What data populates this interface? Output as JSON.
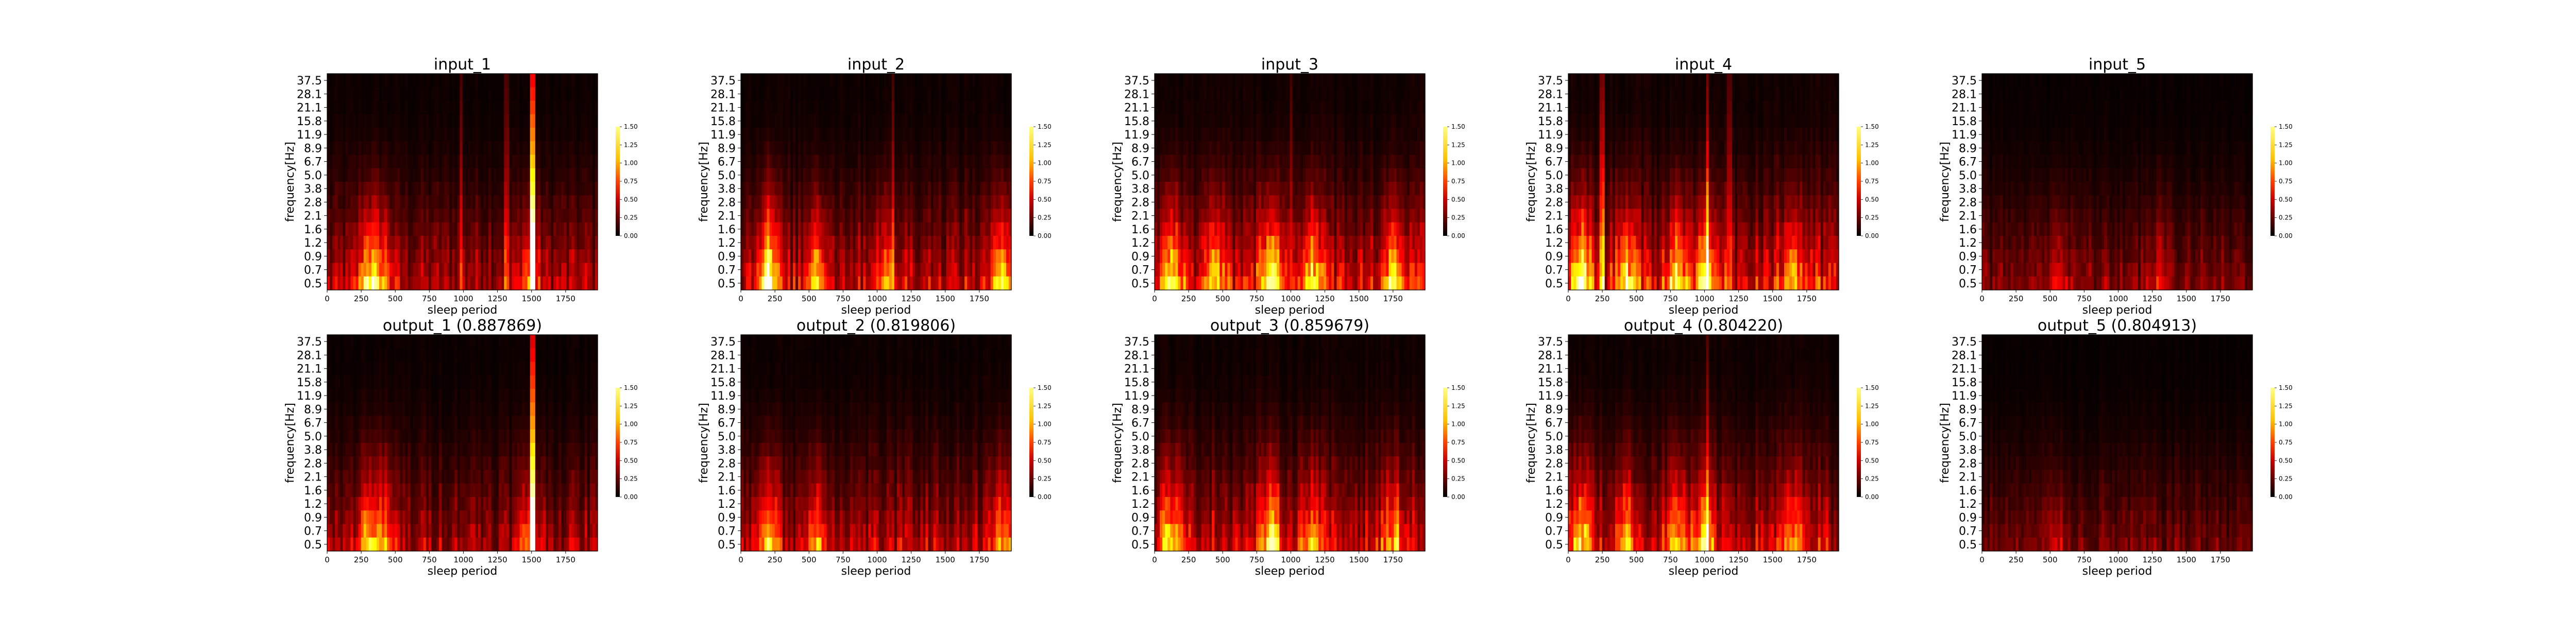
{
  "chart_data": [
    {
      "type": "heatmap",
      "title": "input_1",
      "xlabel": "sleep period",
      "ylabel": "frequency[Hz]",
      "x_ticks": [
        "0",
        "250",
        "500",
        "750",
        "1000",
        "1250",
        "1500",
        "1750"
      ],
      "y_ticks": [
        "37.5",
        "28.1",
        "21.1",
        "15.8",
        "11.9",
        "8.9",
        "6.7",
        "5.0",
        "3.8",
        "2.8",
        "2.1",
        "1.6",
        "1.2",
        "0.9",
        "0.7",
        "0.5"
      ],
      "xlim": [
        0,
        1985
      ],
      "colorbar": {
        "ticks": [
          "1.50",
          "1.25",
          "1.00",
          "0.75",
          "0.50",
          "0.25",
          "0.00"
        ],
        "range": [
          0,
          1.5
        ],
        "colormap": "hot"
      },
      "intensity": {
        "base": 0.36,
        "low_band": [
          [
            300,
            0.8
          ],
          [
            400,
            0.55
          ],
          [
            1480,
            0.45
          ]
        ],
        "streaks": [
          [
            1510,
            1.45
          ],
          [
            980,
            0.4
          ],
          [
            1320,
            0.35
          ]
        ]
      }
    },
    {
      "type": "heatmap",
      "title": "input_2",
      "xlabel": "sleep period",
      "ylabel": "frequency[Hz]",
      "x_ticks": [
        "0",
        "250",
        "500",
        "750",
        "1000",
        "1250",
        "1500",
        "1750"
      ],
      "y_ticks": [
        "37.5",
        "28.1",
        "21.1",
        "15.8",
        "11.9",
        "8.9",
        "6.7",
        "5.0",
        "3.8",
        "2.8",
        "2.1",
        "1.6",
        "1.2",
        "0.9",
        "0.7",
        "0.5"
      ],
      "xlim": [
        0,
        1985
      ],
      "colorbar": {
        "ticks": [
          "1.50",
          "1.25",
          "1.00",
          "0.75",
          "0.50",
          "0.25",
          "0.00"
        ],
        "range": [
          0,
          1.5
        ],
        "colormap": "hot"
      },
      "intensity": {
        "base": 0.42,
        "low_band": [
          [
            200,
            1.1
          ],
          [
            560,
            0.7
          ],
          [
            1920,
            0.85
          ],
          [
            1050,
            0.45
          ]
        ],
        "streaks": [
          [
            1120,
            0.35
          ]
        ]
      }
    },
    {
      "type": "heatmap",
      "title": "input_3",
      "xlabel": "sleep period",
      "ylabel": "frequency[Hz]",
      "x_ticks": [
        "0",
        "250",
        "500",
        "750",
        "1000",
        "1250",
        "1500",
        "1750"
      ],
      "y_ticks": [
        "37.5",
        "28.1",
        "21.1",
        "15.8",
        "11.9",
        "8.9",
        "6.7",
        "5.0",
        "3.8",
        "2.8",
        "2.1",
        "1.6",
        "1.2",
        "0.9",
        "0.7",
        "0.5"
      ],
      "xlim": [
        0,
        1985
      ],
      "colorbar": {
        "ticks": [
          "1.50",
          "1.25",
          "1.00",
          "0.75",
          "0.50",
          "0.25",
          "0.00"
        ],
        "range": [
          0,
          1.5
        ],
        "colormap": "hot"
      },
      "intensity": {
        "base": 0.48,
        "low_band": [
          [
            120,
            0.9
          ],
          [
            850,
            1.0
          ],
          [
            1150,
            0.75
          ],
          [
            1750,
            0.7
          ],
          [
            450,
            0.6
          ]
        ],
        "streaks": [
          [
            1000,
            0.35
          ]
        ]
      }
    },
    {
      "type": "heatmap",
      "title": "input_4",
      "xlabel": "sleep period",
      "ylabel": "frequency[Hz]",
      "x_ticks": [
        "0",
        "250",
        "500",
        "750",
        "1000",
        "1250",
        "1500",
        "1750"
      ],
      "y_ticks": [
        "37.5",
        "28.1",
        "21.1",
        "15.8",
        "11.9",
        "8.9",
        "6.7",
        "5.0",
        "3.8",
        "2.8",
        "2.1",
        "1.6",
        "1.2",
        "0.9",
        "0.7",
        "0.5"
      ],
      "xlim": [
        0,
        1985
      ],
      "colorbar": {
        "ticks": [
          "1.50",
          "1.25",
          "1.00",
          "0.75",
          "0.50",
          "0.25",
          "0.00"
        ],
        "range": [
          0,
          1.5
        ],
        "colormap": "hot"
      },
      "intensity": {
        "base": 0.5,
        "low_band": [
          [
            100,
            1.0
          ],
          [
            420,
            0.8
          ],
          [
            800,
            0.75
          ],
          [
            1000,
            0.85
          ],
          [
            1650,
            0.6
          ]
        ],
        "streaks": [
          [
            250,
            0.55
          ],
          [
            1020,
            0.6
          ],
          [
            1180,
            0.4
          ]
        ]
      }
    },
    {
      "type": "heatmap",
      "title": "input_5",
      "xlabel": "sleep period",
      "ylabel": "frequency[Hz]",
      "x_ticks": [
        "0",
        "250",
        "500",
        "750",
        "1000",
        "1250",
        "1500",
        "1750"
      ],
      "y_ticks": [
        "37.5",
        "28.1",
        "21.1",
        "15.8",
        "11.9",
        "8.9",
        "6.7",
        "5.0",
        "3.8",
        "2.8",
        "2.1",
        "1.6",
        "1.2",
        "0.9",
        "0.7",
        "0.5"
      ],
      "xlim": [
        0,
        1985
      ],
      "colorbar": {
        "ticks": [
          "1.50",
          "1.25",
          "1.00",
          "0.75",
          "0.50",
          "0.25",
          "0.00"
        ],
        "range": [
          0,
          1.5
        ],
        "colormap": "hot"
      },
      "intensity": {
        "base": 0.26,
        "low_band": [
          [
            550,
            0.3
          ],
          [
            1300,
            0.25
          ]
        ],
        "streaks": []
      }
    },
    {
      "type": "heatmap",
      "title": "output_1 (0.887869)",
      "xlabel": "sleep period",
      "ylabel": "frequency[Hz]",
      "x_ticks": [
        "0",
        "250",
        "500",
        "750",
        "1000",
        "1250",
        "1500",
        "1750"
      ],
      "y_ticks": [
        "37.5",
        "28.1",
        "21.1",
        "15.8",
        "11.9",
        "8.9",
        "6.7",
        "5.0",
        "3.8",
        "2.8",
        "2.1",
        "1.6",
        "1.2",
        "0.9",
        "0.7",
        "0.5"
      ],
      "xlim": [
        0,
        1985
      ],
      "colorbar": {
        "ticks": [
          "1.50",
          "1.25",
          "1.00",
          "0.75",
          "0.50",
          "0.25",
          "0.00"
        ],
        "range": [
          0,
          1.5
        ],
        "colormap": "hot"
      },
      "intensity": {
        "base": 0.34,
        "low_band": [
          [
            300,
            0.7
          ],
          [
            420,
            0.5
          ],
          [
            1480,
            0.4
          ]
        ],
        "streaks": [
          [
            1510,
            1.3
          ]
        ]
      }
    },
    {
      "type": "heatmap",
      "title": "output_2 (0.819806)",
      "xlabel": "sleep period",
      "ylabel": "frequency[Hz]",
      "x_ticks": [
        "0",
        "250",
        "500",
        "750",
        "1000",
        "1250",
        "1500",
        "1750"
      ],
      "y_ticks": [
        "37.5",
        "28.1",
        "21.1",
        "15.8",
        "11.9",
        "8.9",
        "6.7",
        "5.0",
        "3.8",
        "2.8",
        "2.1",
        "1.6",
        "1.2",
        "0.9",
        "0.7",
        "0.5"
      ],
      "xlim": [
        0,
        1985
      ],
      "colorbar": {
        "ticks": [
          "1.50",
          "1.25",
          "1.00",
          "0.75",
          "0.50",
          "0.25",
          "0.00"
        ],
        "range": [
          0,
          1.5
        ],
        "colormap": "hot"
      },
      "intensity": {
        "base": 0.38,
        "low_band": [
          [
            200,
            0.75
          ],
          [
            560,
            0.5
          ],
          [
            1920,
            0.6
          ]
        ],
        "streaks": []
      }
    },
    {
      "type": "heatmap",
      "title": "output_3 (0.859679)",
      "xlabel": "sleep period",
      "ylabel": "frequency[Hz]",
      "x_ticks": [
        "0",
        "250",
        "500",
        "750",
        "1000",
        "1250",
        "1500",
        "1750"
      ],
      "y_ticks": [
        "37.5",
        "28.1",
        "21.1",
        "15.8",
        "11.9",
        "8.9",
        "6.7",
        "5.0",
        "3.8",
        "2.8",
        "2.1",
        "1.6",
        "1.2",
        "0.9",
        "0.7",
        "0.5"
      ],
      "xlim": [
        0,
        1985
      ],
      "colorbar": {
        "ticks": [
          "1.50",
          "1.25",
          "1.00",
          "0.75",
          "0.50",
          "0.25",
          "0.00"
        ],
        "range": [
          0,
          1.5
        ],
        "colormap": "hot"
      },
      "intensity": {
        "base": 0.44,
        "low_band": [
          [
            120,
            0.7
          ],
          [
            850,
            0.8
          ],
          [
            1150,
            0.6
          ],
          [
            1750,
            0.55
          ]
        ],
        "streaks": []
      }
    },
    {
      "type": "heatmap",
      "title": "output_4 (0.804220)",
      "xlabel": "sleep period",
      "ylabel": "frequency[Hz]",
      "x_ticks": [
        "0",
        "250",
        "500",
        "750",
        "1000",
        "1250",
        "1500",
        "1750"
      ],
      "y_ticks": [
        "37.5",
        "28.1",
        "21.1",
        "15.8",
        "11.9",
        "8.9",
        "6.7",
        "5.0",
        "3.8",
        "2.8",
        "2.1",
        "1.6",
        "1.2",
        "0.9",
        "0.7",
        "0.5"
      ],
      "xlim": [
        0,
        1985
      ],
      "colorbar": {
        "ticks": [
          "1.50",
          "1.25",
          "1.00",
          "0.75",
          "0.50",
          "0.25",
          "0.00"
        ],
        "range": [
          0,
          1.5
        ],
        "colormap": "hot"
      },
      "intensity": {
        "base": 0.44,
        "low_band": [
          [
            100,
            0.75
          ],
          [
            420,
            0.6
          ],
          [
            800,
            0.6
          ],
          [
            1000,
            0.65
          ],
          [
            1650,
            0.45
          ]
        ],
        "streaks": [
          [
            1020,
            0.4
          ]
        ]
      }
    },
    {
      "type": "heatmap",
      "title": "output_5 (0.804913)",
      "xlabel": "sleep period",
      "ylabel": "frequency[Hz]",
      "x_ticks": [
        "0",
        "250",
        "500",
        "750",
        "1000",
        "1250",
        "1500",
        "1750"
      ],
      "y_ticks": [
        "37.5",
        "28.1",
        "21.1",
        "15.8",
        "11.9",
        "8.9",
        "6.7",
        "5.0",
        "3.8",
        "2.8",
        "2.1",
        "1.6",
        "1.2",
        "0.9",
        "0.7",
        "0.5"
      ],
      "xlim": [
        0,
        1985
      ],
      "colorbar": {
        "ticks": [
          "1.50",
          "1.25",
          "1.00",
          "0.75",
          "0.50",
          "0.25",
          "0.00"
        ],
        "range": [
          0,
          1.5
        ],
        "colormap": "hot"
      },
      "intensity": {
        "base": 0.22,
        "low_band": [
          [
            550,
            0.2
          ]
        ],
        "streaks": []
      }
    }
  ]
}
